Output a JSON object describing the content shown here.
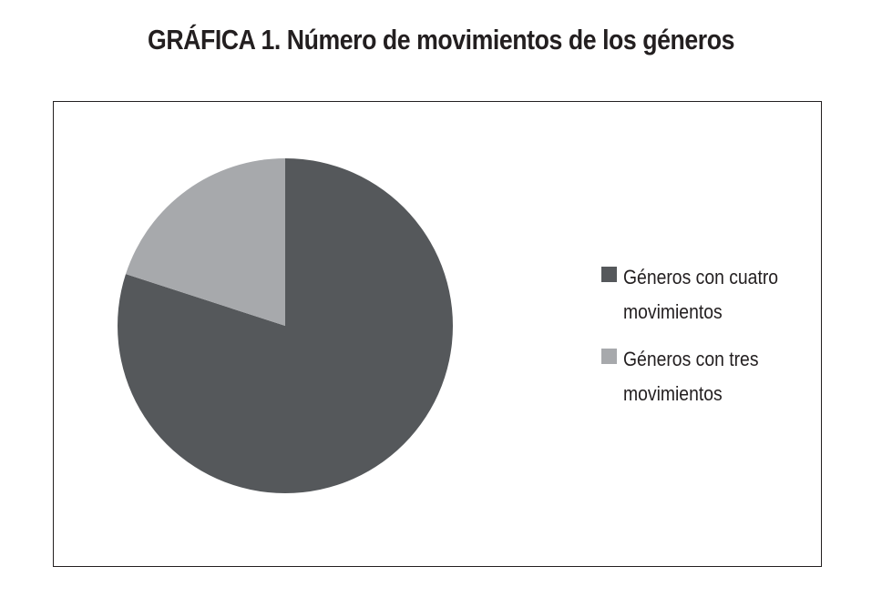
{
  "title": "GRÁFICA 1. Número de movimientos de los géneros",
  "colors": {
    "four_movements": "#55585b",
    "three_movements": "#a7a9ac",
    "frame": "#231f20",
    "text": "#231f20"
  },
  "chart_data": {
    "type": "pie",
    "title": "GRÁFICA 1. Número de movimientos de los géneros",
    "legend_position": "right",
    "slices": [
      {
        "label": "Géneros con cuatro movimientos",
        "value": 80,
        "color": "#55585b"
      },
      {
        "label": "Géneros con tres movimientos",
        "value": 20,
        "color": "#a7a9ac"
      }
    ]
  }
}
